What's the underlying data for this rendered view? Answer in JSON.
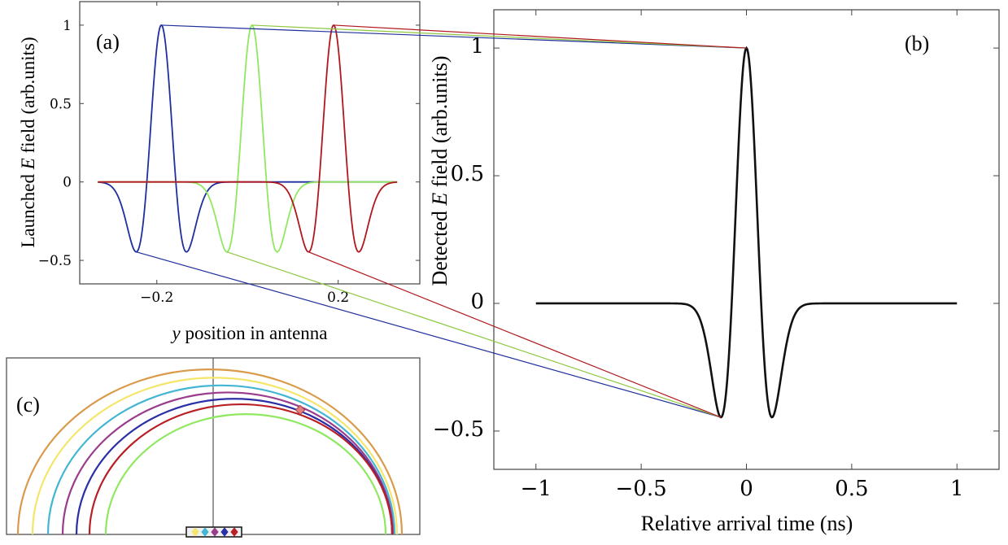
{
  "chart_data": [
    {
      "panel": "(a)",
      "type": "line",
      "title": "",
      "xlabel_var": "y",
      "xlabel_rest": " position in antenna",
      "ylabel_pre": "Launched ",
      "ylabel_var": "E",
      "ylabel_post": " field (arb.units)",
      "xlim": [
        -0.37,
        0.38
      ],
      "ylim": [
        -0.65,
        1.15
      ],
      "xticks": [
        -0.2,
        0.2
      ],
      "xtick_labels": [
        "−0.2",
        "0.2"
      ],
      "yticks": [
        -0.5,
        0,
        0.5,
        1
      ],
      "ytick_labels": [
        "−0.5",
        "0",
        "0.5",
        "1"
      ],
      "pulse": {
        "sigma": 0.032,
        "x_start": -0.33,
        "x_end": 0.33
      },
      "series": [
        {
          "name": "blue",
          "center": -0.19,
          "color": "#1f2f9c"
        },
        {
          "name": "green",
          "center": 0.01,
          "color": "#8fe860"
        },
        {
          "name": "red",
          "center": 0.19,
          "color": "#b0181d"
        }
      ]
    },
    {
      "panel": "(b)",
      "type": "line",
      "title": "",
      "xlabel": "Relative arrival time (ns)",
      "ylabel_pre": "Detected ",
      "ylabel_var": "E",
      "ylabel_post": " field (arb.units)",
      "xlim": [
        -1.2,
        1.2
      ],
      "ylim": [
        -0.65,
        1.15
      ],
      "xticks": [
        -1,
        -0.5,
        0,
        0.5,
        1
      ],
      "xtick_labels": [
        "−1",
        "−0.5",
        "0",
        "0.5",
        "1"
      ],
      "yticks": [
        -0.5,
        0,
        0.5,
        1
      ],
      "ytick_labels": [
        "−0.5",
        "0",
        "0.5",
        "1"
      ],
      "pulse": {
        "sigma": 0.07,
        "x_start": -1,
        "x_end": 1
      },
      "series": [
        {
          "name": "detected",
          "center": 0,
          "color": "#111111"
        }
      ]
    },
    {
      "panel": "(c)",
      "type": "diagram",
      "arc_colors": [
        "#d99a4a",
        "#f5e56a",
        "#43b6d3",
        "#9a3c8c",
        "#2a2fa6",
        "#b82026",
        "#8fe860"
      ],
      "marker_colors": [
        "#f5e56a",
        "#43b6d3",
        "#9a3c8c",
        "#2a2fa6",
        "#b82026"
      ],
      "receiver_color": "#e28080"
    }
  ],
  "connectors": [
    {
      "from_series": "blue",
      "color": "#1f2f9c"
    },
    {
      "from_series": "green",
      "color": "#8fc840"
    },
    {
      "from_series": "red",
      "color": "#b0181d"
    }
  ]
}
